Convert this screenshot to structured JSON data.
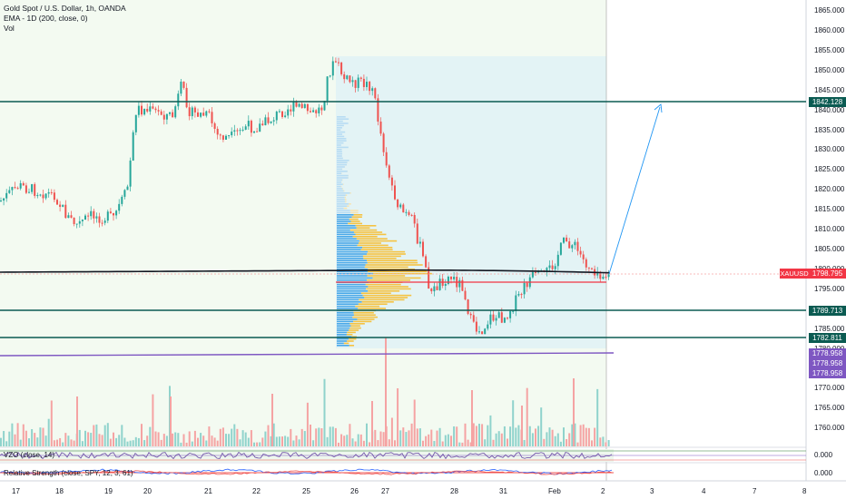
{
  "legend": {
    "title": "Gold Spot / U.S. Dollar, 1h, OANDA",
    "ema": "EMA - 1D (200, close, 0)",
    "vol": "Vol"
  },
  "price_axis": {
    "ticks": [
      "1865.000",
      "1860.000",
      "1855.000",
      "1850.000",
      "1845.000",
      "1840.000",
      "1835.000",
      "1830.000",
      "1825.000",
      "1820.000",
      "1815.000",
      "1810.000",
      "1805.000",
      "1800.000",
      "1795.000",
      "1790.000",
      "1785.000",
      "1780.000",
      "1775.000",
      "1770.000",
      "1765.000",
      "1760.000"
    ]
  },
  "time_axis": {
    "ticks": [
      "17",
      "18",
      "19",
      "20",
      "21",
      "22",
      "25",
      "26",
      "27",
      "28",
      "31",
      "Feb",
      "2",
      "3",
      "4",
      "7",
      "8"
    ]
  },
  "price_labels": {
    "resistance": "1842.128",
    "current": "1798.795",
    "support_1": "1789.713",
    "support_2": "1782.811",
    "purple_1": "1778.958",
    "purple_2": "1778.958",
    "purple_3": "1778.958"
  },
  "symbol_tag": "XAUUSD",
  "indicators": {
    "vzo_label": "VZO (close, 14)",
    "vzo_value": "0.000",
    "rs_label": "Relative Strength (close, SPY, 12, 3, 61)",
    "rs_value": "0.000"
  },
  "colors": {
    "up": "#26a69a",
    "down": "#ef5350",
    "level_line": "#0b5b52",
    "ema": "#131722",
    "purple": "#7e57c2",
    "current": "#f23645",
    "profile_blue": "#4aa8e8",
    "profile_yellow": "#f5c242",
    "arrow": "#2196f3"
  }
}
